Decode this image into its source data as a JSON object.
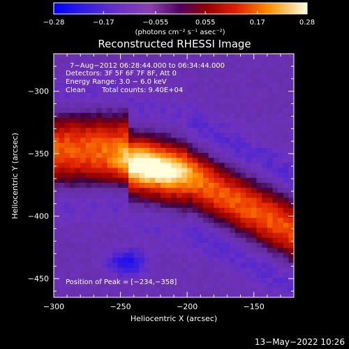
{
  "chart_data": {
    "type": "heatmap",
    "title": "Reconstructed RHESSI Image",
    "xlabel": "Heliocentric X (arcsec)",
    "ylabel": "Heliocentric Y (arcsec)",
    "xlim": [
      -300,
      -120
    ],
    "ylim": [
      -465,
      -270
    ],
    "x_ticks": [
      -300,
      -250,
      -200,
      -150
    ],
    "x_tick_labels": [
      "−300",
      "−250",
      "−200",
      "−150"
    ],
    "y_ticks": [
      -300,
      -350,
      -400,
      -450
    ],
    "y_tick_labels": [
      "−300",
      "−350",
      "−400",
      "−450"
    ],
    "colorbar": {
      "range": [
        -0.28,
        0.28
      ],
      "ticks": [
        -0.28,
        -0.17,
        -0.055,
        0.055,
        0.17,
        0.28
      ],
      "tick_labels": [
        "−0.28",
        "−0.17",
        "−0.055",
        "0.055",
        "0.17",
        "0.28"
      ],
      "unit_label": "(photons cm⁻² s⁻¹ asec⁻²)"
    },
    "annotations": {
      "time_range": "7−Aug−2012 06:28:44.000 to 06:34:44.000",
      "detectors": "Detectors: 3F 5F 6F 7F 8F, Att 0",
      "energy_range": "Energy Range: 3.0 − 6.0 keV",
      "clean": "Clean",
      "total_counts": "Total counts: 9.40E+04",
      "peak_position": "Position of Peak = [−234,−358]"
    },
    "peak": [
      -234,
      -358
    ]
  },
  "footer": {
    "date": "13−May−2022 10:26"
  },
  "colors": {
    "background": "#000000",
    "low": "#0000ff",
    "mid": "#8a40c0",
    "high": "#ff9000",
    "peak": "#ffffd0"
  }
}
